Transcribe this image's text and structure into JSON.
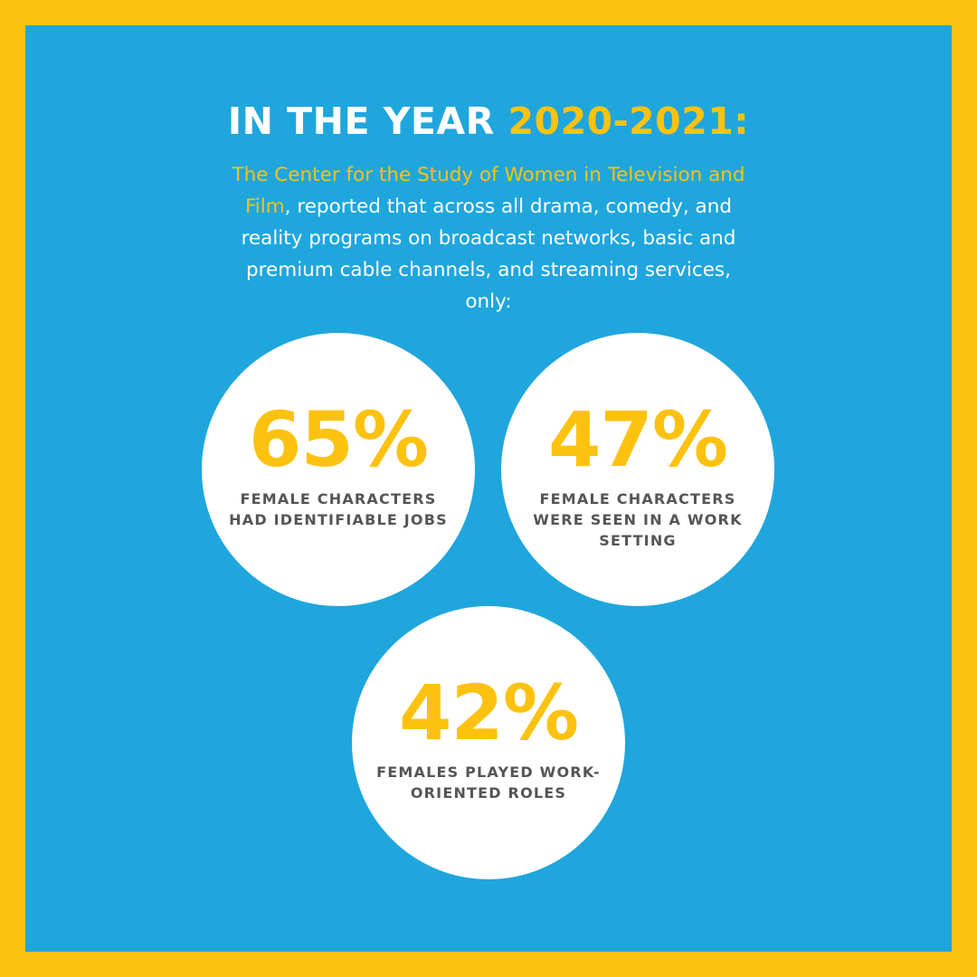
{
  "headline": {
    "prefix": "IN THE YEAR ",
    "year": "2020-2021:"
  },
  "intro": {
    "source": "The Center for the Study of Women in Television and Film",
    "body": ", reported that across all drama, comedy, and reality programs on broadcast networks, basic and premium cable channels, and streaming services, only:"
  },
  "stats": [
    {
      "value": "65%",
      "label": "FEMALE CHARACTERS HAD IDENTIFIABLE JOBS"
    },
    {
      "value": "47%",
      "label": "FEMALE CHARACTERS WERE SEEN IN A WORK SETTING"
    },
    {
      "value": "42%",
      "label": "FEMALES PLAYED WORK-ORIENTED ROLES"
    }
  ],
  "colors": {
    "border": "#FDC20F",
    "background": "#1FA6DD",
    "accent": "#FDC20F",
    "text": "#FFFFFF",
    "label": "#555555"
  }
}
